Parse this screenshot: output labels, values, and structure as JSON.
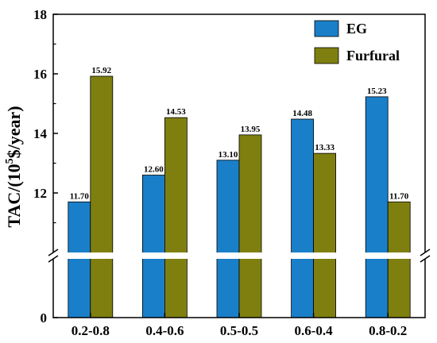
{
  "chart_data": {
    "type": "bar",
    "categories": [
      "0.2-0.8",
      "0.4-0.6",
      "0.5-0.5",
      "0.6-0.4",
      "0.8-0.2"
    ],
    "series": [
      {
        "name": "EG",
        "values": [
          11.7,
          12.6,
          13.1,
          14.48,
          15.23
        ],
        "labels": [
          "11.70",
          "12.60",
          "13.10",
          "14.48",
          "15.23"
        ],
        "color": "#1a7fc9"
      },
      {
        "name": "Furfural",
        "values": [
          15.92,
          14.53,
          13.95,
          13.33,
          11.7
        ],
        "labels": [
          "15.92",
          "14.53",
          "13.95",
          "13.33",
          "11.70"
        ],
        "color": "#7f7f10"
      }
    ],
    "ylabel": {
      "prefix": "TAC/(10",
      "sup": "5",
      "suffix": "$/year)"
    },
    "y_axis": {
      "broken": true,
      "lower_range": [
        0,
        0
      ],
      "upper_range": [
        10,
        18
      ],
      "ticks": [
        0,
        12,
        14,
        16,
        18
      ],
      "tick_labels": [
        "0",
        "12",
        "14",
        "16",
        "18"
      ]
    },
    "legend": {
      "position": "top-right"
    },
    "grid": false
  }
}
